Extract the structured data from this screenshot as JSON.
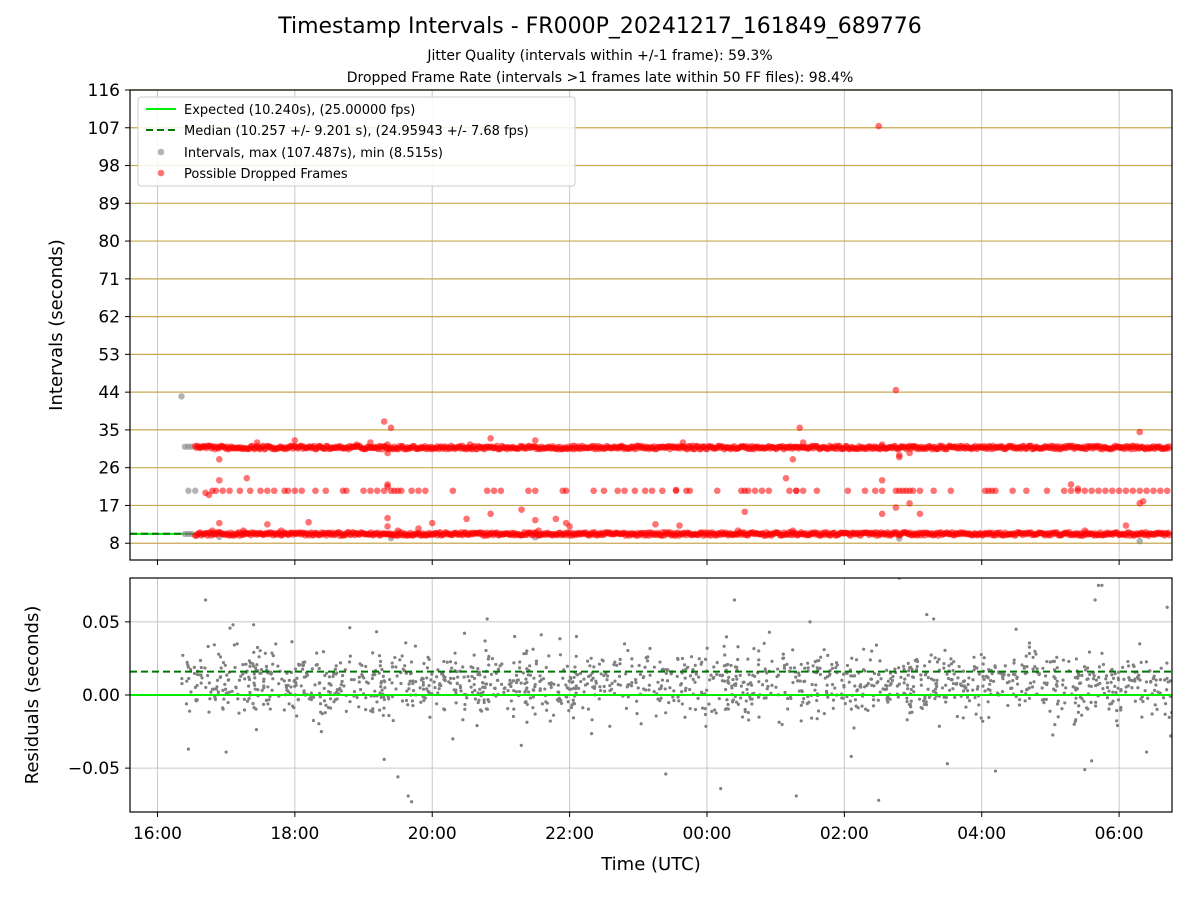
{
  "header": {
    "title": "Timestamp Intervals - FR000P_20241217_161849_689776",
    "subtitle_line1": "Jitter Quality (intervals within +/-1 frame): 59.3%",
    "subtitle_line2": "Dropped Frame Rate (intervals >1 frames late within 50 FF files): 98.4%"
  },
  "colors": {
    "expected": "#00ee00",
    "median": "#007700",
    "intervals": "#808080",
    "dropped": "#ff0000",
    "hline": "#c8a850",
    "grid": "#c8c8c8"
  },
  "chart_data": [
    {
      "type": "scatter",
      "ylabel": "Intervals (seconds)",
      "xlabel": "",
      "xlim": [
        "16:00 -0.4h",
        "06:45"
      ],
      "ylim": [
        4,
        116
      ],
      "yticks": [
        "8",
        "17",
        "26",
        "35",
        "44",
        "53",
        "62",
        "71",
        "80",
        "89",
        "98",
        "107",
        "116"
      ],
      "ytick_values": [
        8,
        17,
        26,
        35,
        44,
        53,
        62,
        71,
        80,
        89,
        98,
        107,
        116
      ],
      "hlines": [
        8,
        17,
        26,
        35,
        44,
        53,
        62,
        71,
        80,
        89,
        98,
        107,
        116
      ],
      "grid": true,
      "legend_position": "top-left",
      "legend": [
        "Expected (10.240s), (25.00000 fps)",
        "Median (10.257 +/- 9.201 s), (24.95943 +/- 7.68 fps)",
        "Intervals, max (107.487s), min (8.515s)",
        "Possible Dropped Frames"
      ],
      "series": [
        {
          "name": "Expected (10.240s), (25.00000 fps)",
          "kind": "line",
          "y": 10.24,
          "x_range_hours": [
            15.6,
            16.55
          ]
        },
        {
          "name": "Median (10.257 +/- 9.201 s), (24.95943 +/- 7.68 fps)",
          "kind": "dashed-line",
          "y": 10.257,
          "x_range_hours": [
            15.6,
            16.55
          ]
        },
        {
          "name": "Intervals, max (107.487s), min (8.515s)",
          "kind": "scatter",
          "points": [
            [
              16.35,
              43
            ],
            [
              16.4,
              31
            ],
            [
              16.45,
              31
            ],
            [
              16.5,
              31
            ],
            [
              16.4,
              10.2
            ],
            [
              16.45,
              10.2
            ],
            [
              16.5,
              10.2
            ],
            [
              16.45,
              20.5
            ],
            [
              16.55,
              20.5
            ],
            [
              16.9,
              9.5
            ],
            [
              19.4,
              9.2
            ],
            [
              21.5,
              9.4
            ],
            [
              26.8,
              9.1
            ],
            [
              30.3,
              8.5
            ]
          ]
        },
        {
          "name": "Possible Dropped Frames",
          "kind": "scatter",
          "bands_hours": [
            [
              16.55,
              30.75,
              10.2
            ],
            [
              16.55,
              30.75,
              30.8
            ]
          ],
          "points": [
            [
              16.7,
              20
            ],
            [
              16.75,
              19.5
            ],
            [
              16.8,
              20.5
            ],
            [
              16.85,
              20.5
            ],
            [
              16.9,
              28
            ],
            [
              16.9,
              23
            ],
            [
              16.95,
              20.5
            ],
            [
              17.05,
              20.5
            ],
            [
              17.2,
              20.5
            ],
            [
              17.3,
              23.5
            ],
            [
              17.35,
              20.5
            ],
            [
              17.5,
              20.5
            ],
            [
              17.6,
              20.5
            ],
            [
              17.7,
              20.5
            ],
            [
              17.85,
              20.5
            ],
            [
              17.9,
              20.5
            ],
            [
              18.0,
              20.5
            ],
            [
              18.1,
              20.5
            ],
            [
              18.3,
              20.5
            ],
            [
              18.45,
              20.5
            ],
            [
              18.7,
              20.5
            ],
            [
              18.75,
              20.5
            ],
            [
              19.0,
              20.5
            ],
            [
              19.1,
              20.5
            ],
            [
              19.2,
              20.5
            ],
            [
              19.3,
              20.5
            ],
            [
              19.35,
              21.5
            ],
            [
              19.35,
              22
            ],
            [
              19.4,
              20.5
            ],
            [
              19.45,
              20.5
            ],
            [
              19.5,
              20.5
            ],
            [
              19.55,
              20.5
            ],
            [
              19.7,
              20.5
            ],
            [
              19.8,
              20.5
            ],
            [
              19.9,
              20.5
            ],
            [
              20.3,
              20.5
            ],
            [
              20.8,
              20.5
            ],
            [
              20.9,
              20.5
            ],
            [
              21.0,
              20.5
            ],
            [
              21.4,
              20.5
            ],
            [
              21.5,
              20.5
            ],
            [
              21.9,
              20.5
            ],
            [
              21.95,
              20.5
            ],
            [
              22.35,
              20.5
            ],
            [
              22.5,
              20.5
            ],
            [
              22.7,
              20.5
            ],
            [
              22.8,
              20.5
            ],
            [
              22.95,
              20.5
            ],
            [
              23.1,
              20.5
            ],
            [
              23.2,
              20.5
            ],
            [
              23.35,
              20.5
            ],
            [
              23.55,
              20.5
            ],
            [
              23.7,
              20.5
            ],
            [
              23.75,
              20.5
            ],
            [
              24.15,
              20.5
            ],
            [
              24.5,
              20.5
            ],
            [
              24.55,
              20.5
            ],
            [
              24.6,
              20.5
            ],
            [
              24.7,
              20.5
            ],
            [
              24.8,
              20.5
            ],
            [
              24.9,
              20.5
            ],
            [
              25.2,
              20.5
            ],
            [
              25.3,
              20.5
            ],
            [
              25.4,
              20.5
            ],
            [
              25.6,
              20.5
            ],
            [
              26.05,
              20.5
            ],
            [
              26.3,
              20.5
            ],
            [
              26.45,
              20.5
            ],
            [
              26.55,
              20.5
            ],
            [
              26.75,
              20.5
            ],
            [
              26.8,
              20.5
            ],
            [
              26.85,
              20.5
            ],
            [
              26.9,
              20.5
            ],
            [
              26.95,
              20.5
            ],
            [
              27.0,
              20.5
            ],
            [
              27.1,
              20.5
            ],
            [
              27.3,
              20.5
            ],
            [
              27.55,
              20.5
            ],
            [
              28.05,
              20.5
            ],
            [
              28.1,
              20.5
            ],
            [
              28.15,
              20.5
            ],
            [
              28.2,
              20.5
            ],
            [
              28.45,
              20.5
            ],
            [
              28.65,
              20.5
            ],
            [
              28.95,
              20.5
            ],
            [
              29.2,
              20.5
            ],
            [
              29.3,
              20.5
            ],
            [
              29.4,
              20.5
            ],
            [
              29.5,
              20.5
            ],
            [
              29.6,
              20.5
            ],
            [
              29.7,
              20.5
            ],
            [
              29.8,
              20.5
            ],
            [
              29.9,
              20.5
            ],
            [
              30.0,
              20.5
            ],
            [
              30.1,
              20.5
            ],
            [
              30.2,
              20.5
            ],
            [
              30.3,
              20.5
            ],
            [
              30.4,
              20.5
            ],
            [
              30.5,
              20.5
            ],
            [
              30.6,
              20.5
            ],
            [
              30.7,
              20.5
            ],
            [
              19.3,
              37
            ],
            [
              19.4,
              35.5
            ],
            [
              19.35,
              29.5
            ],
            [
              19.35,
              31.5
            ],
            [
              19.1,
              32
            ],
            [
              18.9,
              31.5
            ],
            [
              17.45,
              32
            ],
            [
              18.0,
              32.5
            ],
            [
              20.55,
              31.5
            ],
            [
              20.85,
              33
            ],
            [
              21.5,
              32.5
            ],
            [
              22.75,
              31
            ],
            [
              23.65,
              32
            ],
            [
              26.55,
              31.5
            ],
            [
              26.75,
              44.5
            ],
            [
              27.0,
              31
            ],
            [
              26.8,
              29
            ],
            [
              26.8,
              28.5
            ],
            [
              26.95,
              29.5
            ],
            [
              25.35,
              35.5
            ],
            [
              25.4,
              32
            ],
            [
              30.3,
              34.5
            ],
            [
              26.5,
              107.4
            ],
            [
              25.25,
              28
            ],
            [
              23.55,
              20.7
            ],
            [
              25.15,
              23.5
            ],
            [
              26.55,
              23
            ],
            [
              29.3,
              22
            ],
            [
              29.4,
              21
            ],
            [
              30.35,
              18
            ],
            [
              30.3,
              17.5
            ],
            [
              16.9,
              12.8
            ],
            [
              16.8,
              11
            ],
            [
              17.25,
              11
            ],
            [
              17.6,
              12.5
            ],
            [
              17.8,
              11
            ],
            [
              18.2,
              13
            ],
            [
              19.35,
              14
            ],
            [
              19.35,
              12
            ],
            [
              19.5,
              11
            ],
            [
              19.8,
              11.5
            ],
            [
              20.0,
              12.8
            ],
            [
              20.5,
              13.8
            ],
            [
              20.85,
              15
            ],
            [
              21.3,
              16
            ],
            [
              21.5,
              13.5
            ],
            [
              21.55,
              11
            ],
            [
              21.8,
              13.8
            ],
            [
              21.95,
              12.8
            ],
            [
              22.0,
              12
            ],
            [
              23.25,
              12.5
            ],
            [
              23.6,
              12.2
            ],
            [
              24.45,
              11
            ],
            [
              24.55,
              15.5
            ],
            [
              25.25,
              11
            ],
            [
              26.55,
              15
            ],
            [
              26.75,
              16.5
            ],
            [
              26.95,
              17.5
            ],
            [
              27.1,
              15
            ],
            [
              29.5,
              11
            ],
            [
              30.1,
              12.2
            ],
            [
              25.3,
              20.5
            ]
          ]
        }
      ]
    },
    {
      "type": "scatter",
      "ylabel": "Residuals (seconds)",
      "xlabel": "Time (UTC)",
      "ylim": [
        -0.08,
        0.08
      ],
      "yticks": [
        "0.05",
        "0.00",
        "−0.05"
      ],
      "ytick_values": [
        0.05,
        0.0,
        -0.05
      ],
      "xticks": [
        "16:00",
        "18:00",
        "20:00",
        "22:00",
        "00:00",
        "02:00",
        "04:00",
        "06:00"
      ],
      "xtick_hours": [
        16,
        18,
        20,
        22,
        24,
        26,
        28,
        30
      ],
      "xlim_hours": [
        15.6,
        30.77
      ],
      "grid": true,
      "series": [
        {
          "name": "Expected",
          "kind": "line",
          "y": 0.0
        },
        {
          "name": "Median",
          "kind": "dashed-line",
          "y": 0.016
        },
        {
          "name": "Residuals",
          "kind": "scatter",
          "x_range_hours": [
            16.35,
            30.77
          ],
          "count": 1500,
          "center": 0.008,
          "spread": 0.011,
          "outliers": [
            [
              16.7,
              0.065
            ],
            [
              16.45,
              -0.037
            ],
            [
              17.1,
              0.048
            ],
            [
              17.0,
              -0.039
            ],
            [
              17.4,
              0.048
            ],
            [
              19.5,
              -0.056
            ],
            [
              19.65,
              -0.069
            ],
            [
              19.7,
              -0.073
            ],
            [
              19.3,
              -0.044
            ],
            [
              20.3,
              -0.03
            ],
            [
              22.1,
              0.04
            ],
            [
              23.4,
              -0.054
            ],
            [
              24.2,
              -0.064
            ],
            [
              24.4,
              0.065
            ],
            [
              25.3,
              -0.069
            ],
            [
              26.1,
              -0.042
            ],
            [
              26.5,
              -0.072
            ],
            [
              26.8,
              0.08
            ],
            [
              27.5,
              -0.047
            ],
            [
              28.2,
              -0.052
            ],
            [
              28.5,
              0.045
            ],
            [
              29.5,
              -0.051
            ],
            [
              29.6,
              -0.045
            ],
            [
              29.7,
              0.075
            ],
            [
              29.75,
              0.075
            ],
            [
              29.65,
              0.065
            ],
            [
              30.7,
              0.06
            ],
            [
              30.75,
              -0.028
            ],
            [
              30.3,
              0.035
            ],
            [
              30.4,
              -0.039
            ],
            [
              27.2,
              0.055
            ],
            [
              27.3,
              0.052
            ],
            [
              25.5,
              0.05
            ],
            [
              22.8,
              0.035
            ],
            [
              21.2,
              0.04
            ],
            [
              18.8,
              0.046
            ],
            [
              20.8,
              0.052
            ]
          ]
        }
      ]
    }
  ]
}
